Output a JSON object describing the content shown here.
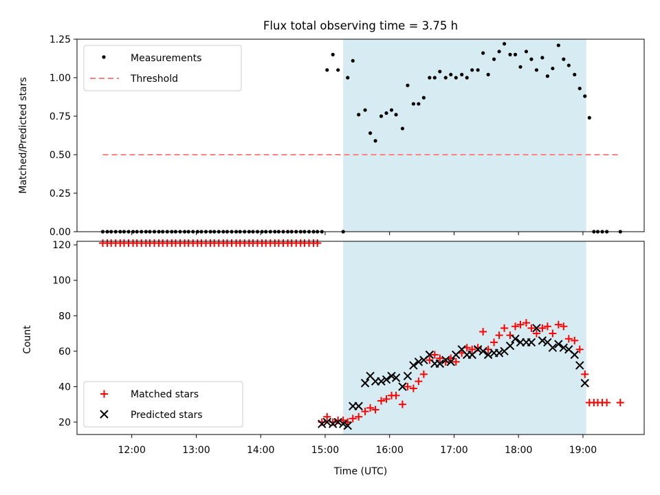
{
  "figure": {
    "title": "Flux total observing time = 3.75 h"
  },
  "chart_data": [
    {
      "type": "scatter",
      "ylabel": "Matched/Predicted stars",
      "xlabel": "",
      "xlim_hours": [
        11.15,
        19.95
      ],
      "ylim": [
        0,
        1.25
      ],
      "yticks": [
        0.0,
        0.25,
        0.5,
        0.75,
        1.0,
        1.25
      ],
      "ytick_labels": [
        "0.00",
        "0.25",
        "0.50",
        "0.75",
        "1.00",
        "1.25"
      ],
      "shaded_span_hours": [
        15.28,
        19.05
      ],
      "shade_color": "#add8e6",
      "legend_position": "upper-left",
      "series": [
        {
          "name": "Measurements",
          "color": "#000000",
          "marker": "dot",
          "x": [
            11.55,
            11.62,
            11.68,
            11.75,
            11.82,
            11.88,
            11.95,
            12.02,
            12.08,
            12.15,
            12.22,
            12.28,
            12.35,
            12.42,
            12.48,
            12.55,
            12.62,
            12.68,
            12.75,
            12.82,
            12.88,
            12.95,
            13.02,
            13.08,
            13.15,
            13.22,
            13.28,
            13.35,
            13.42,
            13.48,
            13.55,
            13.62,
            13.68,
            13.75,
            13.82,
            13.88,
            13.95,
            14.02,
            14.08,
            14.15,
            14.22,
            14.28,
            14.35,
            14.42,
            14.48,
            14.55,
            14.62,
            14.68,
            14.75,
            14.82,
            14.88,
            14.95,
            15.03,
            15.12,
            15.2,
            15.28,
            15.35,
            15.43,
            15.52,
            15.62,
            15.7,
            15.78,
            15.87,
            15.95,
            16.03,
            16.1,
            16.2,
            16.28,
            16.37,
            16.45,
            16.53,
            16.62,
            16.7,
            16.78,
            16.87,
            16.95,
            17.03,
            17.12,
            17.2,
            17.28,
            17.37,
            17.45,
            17.53,
            17.62,
            17.7,
            17.78,
            17.87,
            17.95,
            18.03,
            18.12,
            18.2,
            18.28,
            18.37,
            18.45,
            18.53,
            18.62,
            18.7,
            18.78,
            18.87,
            18.95,
            19.03,
            19.1,
            19.17,
            19.23,
            19.3,
            19.37,
            19.58
          ],
          "y": [
            0,
            0,
            0,
            0,
            0,
            0,
            0,
            0,
            0,
            0,
            0,
            0,
            0,
            0,
            0,
            0,
            0,
            0,
            0,
            0,
            0,
            0,
            0,
            0,
            0,
            0,
            0,
            0,
            0,
            0,
            0,
            0,
            0,
            0,
            0,
            0,
            0,
            0,
            0,
            0,
            0,
            0,
            0,
            0,
            0,
            0,
            0,
            0,
            0,
            0,
            0,
            0,
            1.05,
            1.15,
            1.05,
            0.0,
            1.0,
            1.11,
            0.76,
            0.79,
            0.64,
            0.59,
            0.75,
            0.77,
            0.79,
            0.76,
            0.67,
            0.95,
            0.83,
            0.83,
            0.87,
            1.0,
            1.0,
            1.04,
            1.0,
            1.02,
            1.0,
            1.02,
            1.0,
            1.05,
            1.05,
            1.16,
            1.02,
            1.12,
            1.17,
            1.22,
            1.15,
            1.15,
            1.07,
            1.17,
            1.12,
            1.05,
            1.13,
            1.01,
            1.06,
            1.21,
            1.12,
            1.08,
            1.02,
            0.93,
            0.88,
            0.74,
            0,
            0,
            0,
            0,
            0
          ]
        },
        {
          "name": "Threshold",
          "color": "#ff8080",
          "style": "dashed-line",
          "x": [
            11.55,
            19.58
          ],
          "y": [
            0.5,
            0.5
          ]
        }
      ]
    },
    {
      "type": "scatter",
      "ylabel": "Count",
      "xlabel": "Time (UTC)",
      "xlim_hours": [
        11.15,
        19.95
      ],
      "ylim": [
        13,
        122
      ],
      "yticks": [
        20,
        40,
        60,
        80,
        100,
        120
      ],
      "ytick_labels": [
        "20",
        "40",
        "60",
        "80",
        "100",
        "120"
      ],
      "xticks_hours": [
        12,
        13,
        14,
        15,
        16,
        17,
        18,
        19
      ],
      "xtick_labels": [
        "12:00",
        "13:00",
        "14:00",
        "15:00",
        "16:00",
        "17:00",
        "18:00",
        "19:00"
      ],
      "shaded_span_hours": [
        15.28,
        19.05
      ],
      "shade_color": "#add8e6",
      "legend_position": "lower-left",
      "series": [
        {
          "name": "Matched stars",
          "color": "#ff0000",
          "marker": "plus",
          "x": [
            11.55,
            11.62,
            11.68,
            11.75,
            11.82,
            11.88,
            11.95,
            12.02,
            12.08,
            12.15,
            12.22,
            12.28,
            12.35,
            12.42,
            12.48,
            12.55,
            12.62,
            12.68,
            12.75,
            12.82,
            12.88,
            12.95,
            13.02,
            13.08,
            13.15,
            13.22,
            13.28,
            13.35,
            13.42,
            13.48,
            13.55,
            13.62,
            13.68,
            13.75,
            13.82,
            13.88,
            13.95,
            14.02,
            14.08,
            14.15,
            14.22,
            14.28,
            14.35,
            14.42,
            14.48,
            14.55,
            14.62,
            14.68,
            14.75,
            14.82,
            14.88,
            14.95,
            15.03,
            15.12,
            15.2,
            15.28,
            15.35,
            15.43,
            15.52,
            15.62,
            15.7,
            15.78,
            15.87,
            15.95,
            16.03,
            16.1,
            16.2,
            16.28,
            16.37,
            16.45,
            16.53,
            16.62,
            16.7,
            16.78,
            16.87,
            16.95,
            17.03,
            17.12,
            17.2,
            17.28,
            17.37,
            17.45,
            17.53,
            17.62,
            17.7,
            17.78,
            17.87,
            17.95,
            18.03,
            18.12,
            18.2,
            18.28,
            18.37,
            18.45,
            18.53,
            18.62,
            18.7,
            18.78,
            18.87,
            18.95,
            19.03,
            19.1,
            19.17,
            19.23,
            19.3,
            19.37,
            19.58
          ],
          "y": [
            121,
            121,
            121,
            121,
            121,
            121,
            121,
            121,
            121,
            121,
            121,
            121,
            121,
            121,
            121,
            121,
            121,
            121,
            121,
            121,
            121,
            121,
            121,
            121,
            121,
            121,
            121,
            121,
            121,
            121,
            121,
            121,
            121,
            121,
            121,
            121,
            121,
            121,
            121,
            121,
            121,
            121,
            121,
            121,
            121,
            121,
            121,
            121,
            121,
            121,
            121,
            20,
            23,
            20,
            21,
            21,
            20,
            22,
            23,
            26,
            28,
            27,
            32,
            33,
            35,
            35,
            30,
            40,
            39,
            43,
            47,
            55,
            58,
            56,
            54,
            56,
            54,
            59,
            62,
            61,
            62,
            71,
            61,
            65,
            69,
            73,
            69,
            74,
            75,
            76,
            73,
            70,
            73,
            74,
            70,
            75,
            74,
            67,
            66,
            61,
            47,
            31,
            31,
            31,
            31,
            31,
            31
          ]
        },
        {
          "name": "Predicted stars",
          "color": "#000000",
          "marker": "x",
          "x": [
            14.95,
            15.03,
            15.12,
            15.2,
            15.28,
            15.35,
            15.43,
            15.52,
            15.62,
            15.7,
            15.78,
            15.87,
            15.95,
            16.03,
            16.1,
            16.2,
            16.28,
            16.37,
            16.45,
            16.53,
            16.62,
            16.7,
            16.78,
            16.87,
            16.95,
            17.03,
            17.12,
            17.2,
            17.28,
            17.37,
            17.45,
            17.53,
            17.62,
            17.7,
            17.78,
            17.87,
            17.95,
            18.03,
            18.12,
            18.2,
            18.28,
            18.37,
            18.45,
            18.53,
            18.62,
            18.7,
            18.78,
            18.87,
            18.95,
            19.03
          ],
          "y": [
            19,
            20,
            19,
            20,
            19,
            18,
            29,
            29,
            42,
            46,
            43,
            43,
            44,
            46,
            45,
            40,
            46,
            52,
            54,
            55,
            58,
            53,
            53,
            55,
            54,
            58,
            61,
            58,
            58,
            61,
            60,
            58,
            59,
            59,
            60,
            63,
            67,
            65,
            65,
            65,
            73,
            66,
            65,
            62,
            64,
            62,
            61,
            58,
            52,
            42
          ]
        }
      ]
    }
  ]
}
